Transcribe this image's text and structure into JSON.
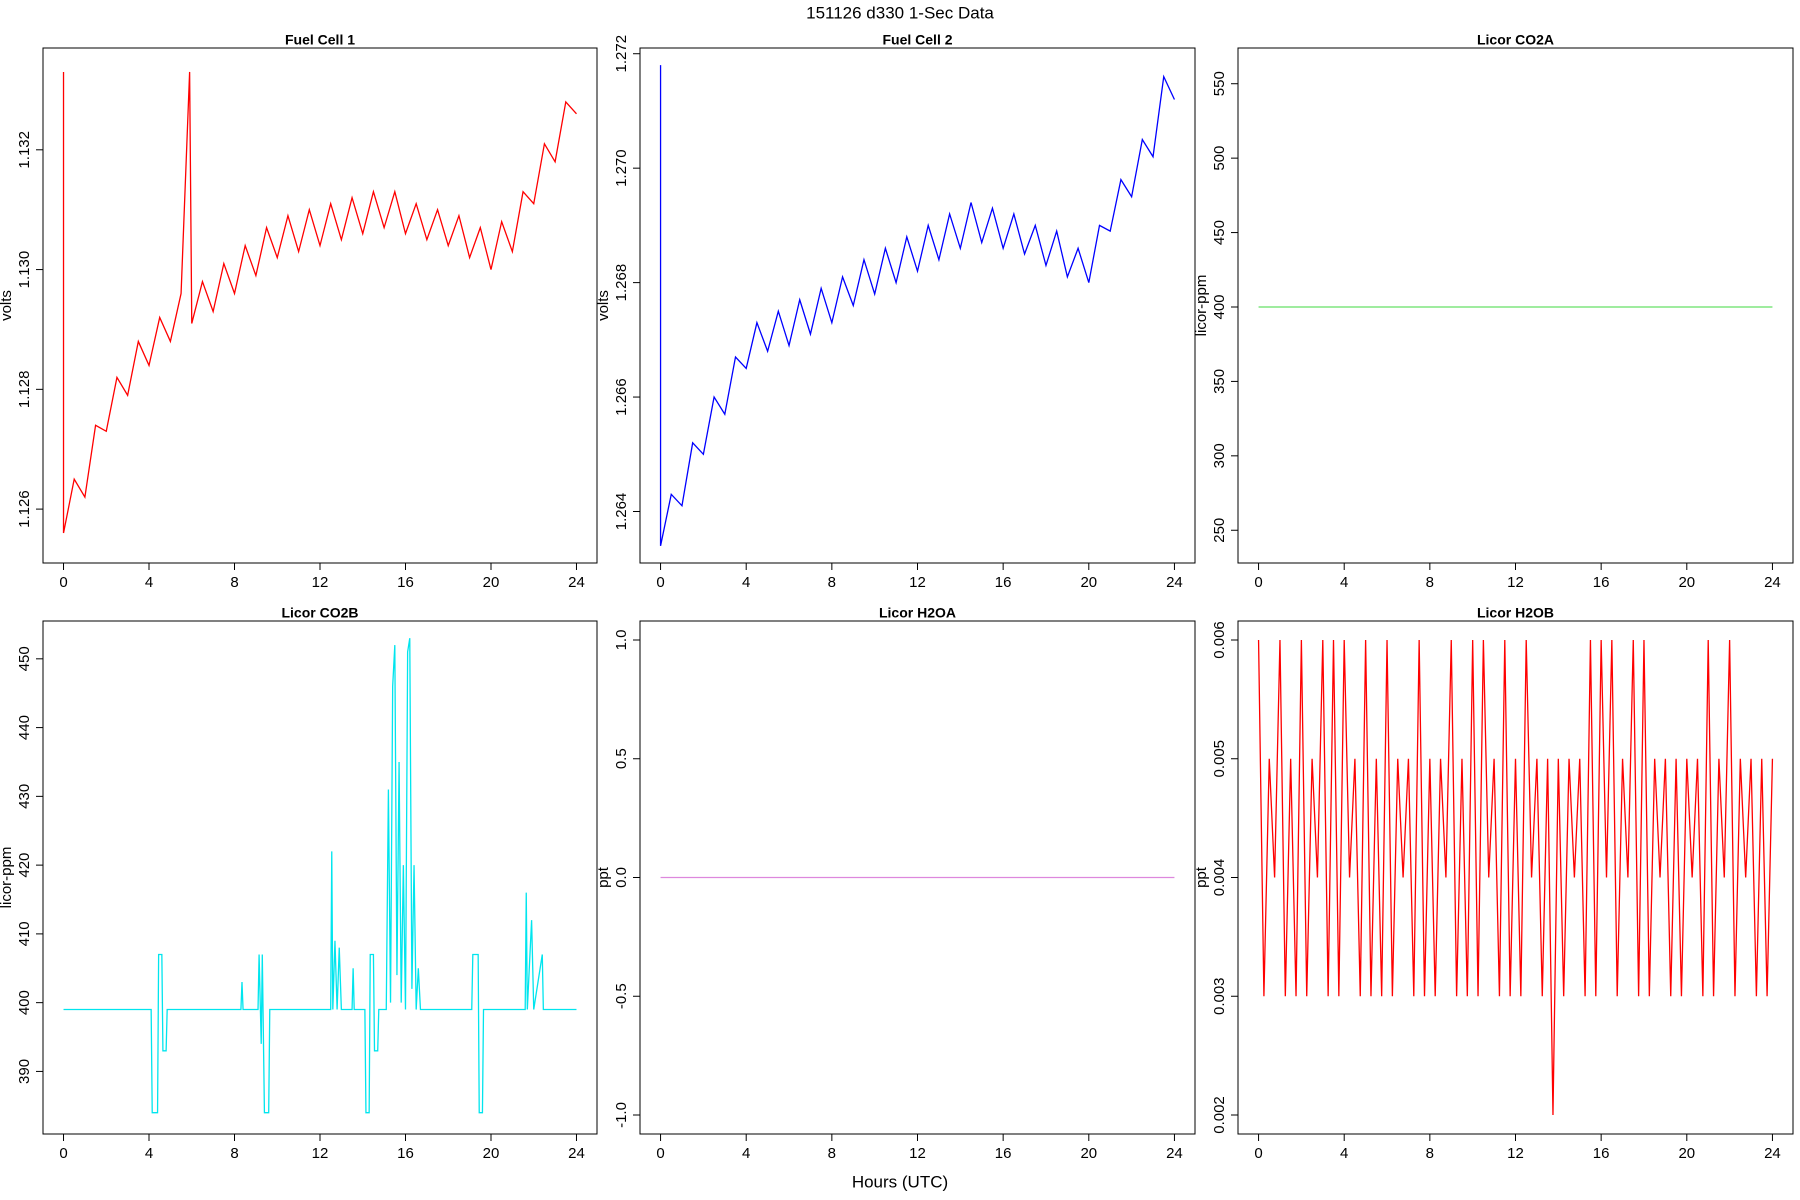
{
  "title": "151126   d330   1-Sec Data",
  "xlabel": "Hours (UTC)",
  "chart_data": [
    {
      "type": "line",
      "title": "Fuel Cell 1",
      "ylabel": "volts",
      "color": "#ff0000",
      "xlim": [
        -0.96,
        24.96
      ],
      "xticks": [
        0,
        4,
        8,
        12,
        16,
        20,
        24
      ],
      "ylim": [
        1.1251,
        1.1337
      ],
      "yticks": [
        1.126,
        1.128,
        {
          "value": 1.13,
          "label": "1.130"
        },
        1.132
      ],
      "x": [
        0,
        0,
        0.5,
        1,
        1.5,
        2,
        2.5,
        3,
        3.5,
        4,
        4.5,
        5,
        5.5,
        5.9,
        6,
        6.5,
        7,
        7.5,
        8,
        8.5,
        9,
        9.5,
        10,
        10.5,
        11,
        11.5,
        12,
        12.5,
        13,
        13.5,
        14,
        14.5,
        15,
        15.5,
        16,
        16.5,
        17,
        17.5,
        18,
        18.5,
        19,
        19.5,
        20,
        20.5,
        21,
        21.5,
        22,
        22.5,
        23,
        23.5,
        24
      ],
      "values": [
        1.1333,
        1.1256,
        1.1265,
        1.1262,
        1.1274,
        1.1273,
        1.1282,
        1.1279,
        1.1288,
        1.1284,
        1.1292,
        1.1288,
        1.1296,
        1.1333,
        1.1291,
        1.1298,
        1.1293,
        1.1301,
        1.1296,
        1.1304,
        1.1299,
        1.1307,
        1.1302,
        1.1309,
        1.1303,
        1.131,
        1.1304,
        1.1311,
        1.1305,
        1.1312,
        1.1306,
        1.1313,
        1.1307,
        1.1313,
        1.1306,
        1.1311,
        1.1305,
        1.131,
        1.1304,
        1.1309,
        1.1302,
        1.1307,
        1.13,
        1.1308,
        1.1303,
        1.1313,
        1.1311,
        1.1321,
        1.1318,
        1.1328,
        1.1326
      ]
    },
    {
      "type": "line",
      "title": "Fuel Cell 2",
      "ylabel": "volts",
      "color": "#0000ff",
      "xlim": [
        -0.96,
        24.96
      ],
      "xticks": [
        0,
        4,
        8,
        12,
        16,
        20,
        24
      ],
      "ylim": [
        1.2631,
        1.2721
      ],
      "yticks": [
        1.264,
        1.266,
        1.268,
        {
          "value": 1.27,
          "label": "1.270"
        },
        1.272
      ],
      "x": [
        0,
        0,
        0.5,
        1,
        1.5,
        2,
        2.5,
        3,
        3.5,
        4,
        4.5,
        5,
        5.5,
        6,
        6.5,
        7,
        7.5,
        8,
        8.5,
        9,
        9.5,
        10,
        10.5,
        11,
        11.5,
        12,
        12.5,
        13,
        13.5,
        14,
        14.5,
        15,
        15.5,
        16,
        16.5,
        17,
        17.5,
        18,
        18.5,
        19,
        19.5,
        20,
        20.5,
        21,
        21.5,
        22,
        22.5,
        23,
        23.5,
        24
      ],
      "values": [
        1.2718,
        1.2634,
        1.2643,
        1.2641,
        1.2652,
        1.265,
        1.266,
        1.2657,
        1.2667,
        1.2665,
        1.2673,
        1.2668,
        1.2675,
        1.2669,
        1.2677,
        1.2671,
        1.2679,
        1.2673,
        1.2681,
        1.2676,
        1.2684,
        1.2678,
        1.2686,
        1.268,
        1.2688,
        1.2682,
        1.269,
        1.2684,
        1.2692,
        1.2686,
        1.2694,
        1.2687,
        1.2693,
        1.2686,
        1.2692,
        1.2685,
        1.269,
        1.2683,
        1.2689,
        1.2681,
        1.2686,
        1.268,
        1.269,
        1.2689,
        1.2698,
        1.2695,
        1.2705,
        1.2702,
        1.2716,
        1.2712
      ]
    },
    {
      "type": "line",
      "title": "Licor CO2A",
      "ylabel": "licor-ppm",
      "color": "#66e066",
      "xlim": [
        -0.96,
        24.96
      ],
      "xticks": [
        0,
        4,
        8,
        12,
        16,
        20,
        24
      ],
      "ylim": [
        228,
        574
      ],
      "yticks": [
        250,
        300,
        350,
        400,
        450,
        500,
        550
      ],
      "x": [
        0,
        24
      ],
      "values": [
        400,
        400
      ]
    },
    {
      "type": "line",
      "title": "Licor CO2B",
      "ylabel": "licor-ppm",
      "color": "#00e5ee",
      "xlim": [
        -0.96,
        24.96
      ],
      "xticks": [
        0,
        4,
        8,
        12,
        16,
        20,
        24
      ],
      "ylim": [
        380.9,
        455.5
      ],
      "yticks": [
        390,
        400,
        410,
        420,
        430,
        440,
        450
      ],
      "x": [
        0,
        4.1,
        4.15,
        4.4,
        4.45,
        4.6,
        4.65,
        4.8,
        4.85,
        8.3,
        8.35,
        8.4,
        9.1,
        9.15,
        9.25,
        9.3,
        9.4,
        9.6,
        9.65,
        12.5,
        12.55,
        12.6,
        12.7,
        12.8,
        12.9,
        13.0,
        13.5,
        13.55,
        13.6,
        14.1,
        14.15,
        14.3,
        14.35,
        14.5,
        14.55,
        14.7,
        14.75,
        15.1,
        15.2,
        15.3,
        15.4,
        15.5,
        15.6,
        15.7,
        15.8,
        15.9,
        16.0,
        16.1,
        16.2,
        16.3,
        16.4,
        16.5,
        16.6,
        16.7,
        19.1,
        19.15,
        19.4,
        19.45,
        19.6,
        19.65,
        21.6,
        21.65,
        21.7,
        21.9,
        22.0,
        22.4,
        22.45,
        24
      ],
      "values": [
        399,
        399,
        384,
        384,
        407,
        407,
        393,
        393,
        399,
        399,
        403,
        399,
        399,
        407,
        394,
        407,
        384,
        384,
        399,
        399,
        422,
        399,
        409,
        399,
        408,
        399,
        399,
        405,
        399,
        399,
        384,
        384,
        407,
        407,
        393,
        393,
        399,
        399,
        431,
        400,
        446,
        452,
        404,
        435,
        400,
        420,
        399,
        451,
        453,
        402,
        420,
        399,
        405,
        399,
        399,
        407,
        407,
        384,
        384,
        399,
        399,
        416,
        399,
        412,
        399,
        407,
        399,
        399
      ]
    },
    {
      "type": "line",
      "title": "Licor H2OA",
      "ylabel": "ppt",
      "color": "#dd88dd",
      "xlim": [
        -0.96,
        24.96
      ],
      "xticks": [
        0,
        4,
        8,
        12,
        16,
        20,
        24
      ],
      "ylim": [
        -1.08,
        1.08
      ],
      "yticks": [
        {
          "value": -1,
          "label": "-1.0"
        },
        -0.5,
        {
          "value": 0,
          "label": "0.0"
        },
        0.5,
        {
          "value": 1,
          "label": "1.0"
        }
      ],
      "x": [
        0,
        24
      ],
      "values": [
        0,
        0
      ]
    },
    {
      "type": "line",
      "title": "Licor H2OB",
      "ylabel": "ppt",
      "color": "#ff0000",
      "xlim": [
        -0.96,
        24.96
      ],
      "xticks": [
        0,
        4,
        8,
        12,
        16,
        20,
        24
      ],
      "ylim": [
        0.00184,
        0.00616
      ],
      "yticks": [
        0.002,
        0.003,
        0.004,
        0.005,
        0.006
      ],
      "x": [
        0,
        0.25,
        0.5,
        0.75,
        1,
        1.25,
        1.5,
        1.75,
        2,
        2.25,
        2.5,
        2.75,
        3,
        3.25,
        3.5,
        3.75,
        4,
        4.25,
        4.5,
        4.75,
        5,
        5.25,
        5.5,
        5.75,
        6,
        6.25,
        6.5,
        6.75,
        7,
        7.25,
        7.5,
        7.75,
        8,
        8.25,
        8.5,
        8.75,
        9,
        9.25,
        9.5,
        9.75,
        10,
        10.25,
        10.5,
        10.75,
        11,
        11.25,
        11.5,
        11.75,
        12,
        12.25,
        12.5,
        12.75,
        13,
        13.25,
        13.5,
        13.75,
        14,
        14.25,
        14.5,
        14.75,
        15,
        15.25,
        15.5,
        15.75,
        16,
        16.25,
        16.5,
        16.75,
        17,
        17.25,
        17.5,
        17.75,
        18,
        18.25,
        18.5,
        18.75,
        19,
        19.25,
        19.5,
        19.75,
        20,
        20.25,
        20.5,
        20.75,
        21,
        21.25,
        21.5,
        21.75,
        22,
        22.25,
        22.5,
        22.75,
        23,
        23.25,
        23.5,
        23.75,
        24
      ],
      "values": [
        0.006,
        0.003,
        0.005,
        0.004,
        0.006,
        0.003,
        0.005,
        0.003,
        0.006,
        0.003,
        0.005,
        0.004,
        0.006,
        0.003,
        0.006,
        0.003,
        0.006,
        0.004,
        0.005,
        0.003,
        0.006,
        0.003,
        0.005,
        0.003,
        0.006,
        0.003,
        0.005,
        0.004,
        0.005,
        0.003,
        0.006,
        0.003,
        0.005,
        0.003,
        0.005,
        0.004,
        0.006,
        0.003,
        0.005,
        0.003,
        0.006,
        0.003,
        0.006,
        0.004,
        0.005,
        0.003,
        0.006,
        0.003,
        0.005,
        0.003,
        0.006,
        0.004,
        0.005,
        0.003,
        0.005,
        0.002,
        0.005,
        0.003,
        0.005,
        0.004,
        0.005,
        0.003,
        0.006,
        0.003,
        0.006,
        0.004,
        0.006,
        0.003,
        0.005,
        0.004,
        0.006,
        0.003,
        0.006,
        0.003,
        0.005,
        0.004,
        0.005,
        0.003,
        0.005,
        0.003,
        0.005,
        0.004,
        0.005,
        0.003,
        0.006,
        0.003,
        0.005,
        0.004,
        0.006,
        0.003,
        0.005,
        0.004,
        0.005,
        0.003,
        0.005,
        0.003,
        0.005
      ]
    }
  ]
}
